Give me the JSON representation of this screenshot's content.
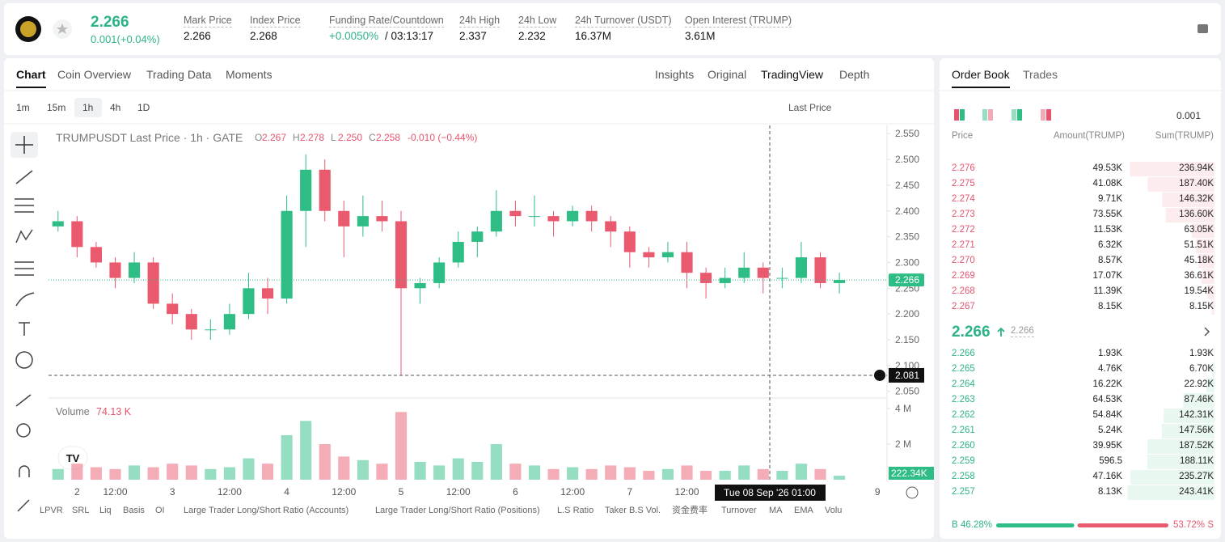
{
  "header": {
    "price": "2.266",
    "change": "0.001(+0.04%)",
    "stats": [
      {
        "label": "Mark Price",
        "value": "2.266"
      },
      {
        "label": "Index Price",
        "value": "2.268"
      },
      {
        "label": "Funding Rate/Countdown",
        "value": "+0.0050%",
        "extra": "/ 03:13:17"
      },
      {
        "label": "24h High",
        "value": "2.337"
      },
      {
        "label": "24h Low",
        "value": "2.232"
      },
      {
        "label": "24h Turnover (USDT)",
        "value": "16.37M"
      },
      {
        "label": "Open Interest (TRUMP)",
        "value": "3.61M"
      }
    ]
  },
  "tabs": [
    "Chart",
    "Coin Overview",
    "Trading Data",
    "Moments"
  ],
  "views": [
    "Insights",
    "Original",
    "TradingView",
    "Depth"
  ],
  "intervals": [
    "1m",
    "15m",
    "1h",
    "4h",
    "1D"
  ],
  "price_type": "Last Price",
  "indicators": [
    "LPVR",
    "SRL",
    "Liq",
    "Basis",
    "OI",
    "Large Trader Long/Short Ratio (Accounts)",
    "Large Trader Long/Short Ratio (Positions)",
    "L.S Ratio",
    "Taker B.S Vol.",
    "资金费率",
    "Turnover",
    "MA",
    "EMA",
    "Volu"
  ],
  "chart_data": {
    "type": "candlestick",
    "title": "TRUMPUSDT Last Price · 1h · GATE",
    "legend": [
      {
        "key": "O",
        "value": "2.267"
      },
      {
        "key": "H",
        "value": "2.278"
      },
      {
        "key": "L",
        "value": "2.250"
      },
      {
        "key": "C",
        "value": "2.258"
      }
    ],
    "legend_change": "-0.010 (−0.44%)",
    "volume_title": "Volume",
    "volume_legend": "74.13 K",
    "up_color": "#2ebd85",
    "down_color": "#ea5a6f",
    "categories": [
      null,
      "2",
      null,
      "12:00",
      null,
      null,
      "3",
      null,
      null,
      "12:00",
      null,
      null,
      "4",
      null,
      null,
      "12:00",
      null,
      null,
      "5",
      null,
      null,
      "12:00",
      null,
      null,
      "6",
      null,
      null,
      "12:00",
      null,
      null,
      "7",
      null,
      null,
      "12:00",
      null,
      null,
      null,
      null,
      null,
      null,
      null,
      null,
      null,
      "9"
    ],
    "open": [
      2.37,
      2.38,
      2.33,
      2.3,
      2.27,
      2.3,
      2.22,
      2.2,
      2.17,
      2.17,
      2.2,
      2.25,
      2.23,
      2.4,
      2.48,
      2.4,
      2.37,
      2.39,
      2.38,
      2.25,
      2.26,
      2.3,
      2.34,
      2.36,
      2.4,
      2.39,
      2.39,
      2.38,
      2.4,
      2.38,
      2.36,
      2.32,
      2.31,
      2.32,
      2.28,
      2.26,
      2.27,
      2.29,
      2.27,
      2.27,
      2.31,
      2.26,
      null,
      null
    ],
    "high": [
      2.4,
      2.39,
      2.34,
      2.31,
      2.32,
      2.31,
      2.24,
      2.21,
      2.19,
      2.22,
      2.28,
      2.27,
      2.43,
      2.51,
      2.5,
      2.42,
      2.43,
      2.42,
      2.4,
      2.27,
      2.31,
      2.36,
      2.37,
      2.44,
      2.42,
      2.43,
      2.4,
      2.41,
      2.41,
      2.39,
      2.37,
      2.33,
      2.34,
      2.34,
      2.29,
      2.29,
      2.32,
      2.3,
      2.29,
      2.34,
      2.32,
      2.28,
      null,
      null
    ],
    "low": [
      2.36,
      2.31,
      2.29,
      2.25,
      2.26,
      2.21,
      2.18,
      2.15,
      2.15,
      2.16,
      2.19,
      2.2,
      2.22,
      2.33,
      2.38,
      2.31,
      2.35,
      2.36,
      2.081,
      2.22,
      2.25,
      2.29,
      2.31,
      2.35,
      2.37,
      2.37,
      2.35,
      2.37,
      2.36,
      2.33,
      2.29,
      2.29,
      2.3,
      2.25,
      2.23,
      2.25,
      2.26,
      2.24,
      2.25,
      2.26,
      2.25,
      2.24,
      null,
      null
    ],
    "close": [
      2.38,
      2.33,
      2.3,
      2.27,
      2.3,
      2.22,
      2.2,
      2.17,
      2.17,
      2.2,
      2.25,
      2.23,
      2.4,
      2.48,
      2.4,
      2.37,
      2.39,
      2.38,
      2.25,
      2.26,
      2.3,
      2.34,
      2.36,
      2.4,
      2.39,
      2.39,
      2.38,
      2.4,
      2.38,
      2.36,
      2.32,
      2.31,
      2.32,
      2.28,
      2.26,
      2.27,
      2.29,
      2.27,
      2.27,
      2.31,
      2.26,
      2.266,
      null,
      null
    ],
    "volume": [
      0.6,
      0.9,
      0.7,
      0.6,
      0.8,
      0.7,
      0.9,
      0.8,
      0.6,
      0.7,
      1.2,
      0.9,
      2.5,
      3.3,
      2.0,
      1.3,
      1.1,
      0.9,
      3.8,
      1.0,
      0.8,
      1.2,
      1.0,
      2.0,
      0.9,
      0.8,
      0.6,
      0.7,
      0.6,
      0.8,
      0.7,
      0.5,
      0.6,
      0.8,
      0.5,
      0.5,
      0.8,
      0.6,
      0.5,
      0.9,
      0.6,
      0.22234,
      null,
      null
    ],
    "last_volume_label": "222.34K",
    "ylim": [
      2.037,
      2.566
    ],
    "yticks": [
      {
        "value": 2.05,
        "label": "2.050"
      },
      {
        "value": 2.1,
        "label": "2.100"
      },
      {
        "value": 2.15,
        "label": "2.150"
      },
      {
        "value": 2.2,
        "label": "2.200"
      },
      {
        "value": 2.25,
        "label": "2.250"
      },
      {
        "value": 2.3,
        "label": "2.300"
      },
      {
        "value": 2.35,
        "label": "2.350"
      },
      {
        "value": 2.4,
        "label": "2.400"
      },
      {
        "value": 2.45,
        "label": "2.450"
      },
      {
        "value": 2.5,
        "label": "2.500"
      },
      {
        "value": 2.55,
        "label": "2.550"
      }
    ],
    "volume_ylim": [
      0,
      4.45
    ],
    "volume_yticks": [
      {
        "value": 2,
        "label": "2 M"
      },
      {
        "value": 4,
        "label": "4 M"
      }
    ],
    "last_price": 2.266,
    "crosshair": {
      "price": 2.081,
      "time": "Tue 08 Sep '26 01:00"
    }
  },
  "order_book": {
    "tabs": [
      "Order Book",
      "Trades"
    ],
    "precision": "0.001",
    "columns": [
      "Price",
      "Amount(TRUMP)",
      "Sum(TRUMP)"
    ],
    "asks": {
      "price": [
        "2.276",
        "2.275",
        "2.274",
        "2.273",
        "2.272",
        "2.271",
        "2.270",
        "2.269",
        "2.268",
        "2.267"
      ],
      "amount": [
        "49.53K",
        "41.08K",
        "9.71K",
        "73.55K",
        "11.53K",
        "6.32K",
        "8.57K",
        "17.07K",
        "11.39K",
        "8.15K"
      ],
      "sum": [
        236.94,
        187.4,
        146.32,
        136.6,
        63.05,
        51.51,
        45.18,
        36.61,
        19.54,
        8.15
      ],
      "sum_labels": [
        "236.94K",
        "187.40K",
        "146.32K",
        "136.60K",
        "63.05K",
        "51.51K",
        "45.18K",
        "36.61K",
        "19.54K",
        "8.15K"
      ]
    },
    "mid_price": "2.266",
    "mark_price": "2.266",
    "bids": {
      "price": [
        "2.266",
        "2.265",
        "2.264",
        "2.263",
        "2.262",
        "2.261",
        "2.260",
        "2.259",
        "2.258",
        "2.257"
      ],
      "amount": [
        "1.93K",
        "4.76K",
        "16.22K",
        "64.53K",
        "54.84K",
        "5.24K",
        "39.95K",
        "596.5",
        "47.16K",
        "8.13K"
      ],
      "sum": [
        1.93,
        6.7,
        22.92,
        87.46,
        142.31,
        147.56,
        187.52,
        188.11,
        235.27,
        243.41
      ],
      "sum_labels": [
        "1.93K",
        "6.70K",
        "22.92K",
        "87.46K",
        "142.31K",
        "147.56K",
        "187.52K",
        "188.11K",
        "235.27K",
        "243.41K"
      ]
    },
    "buy_label": "B",
    "buy_pct": 46.28,
    "buy_pct_label": "46.28%",
    "sell_pct": 53.72,
    "sell_pct_label": "53.72%",
    "sell_label": "S"
  }
}
